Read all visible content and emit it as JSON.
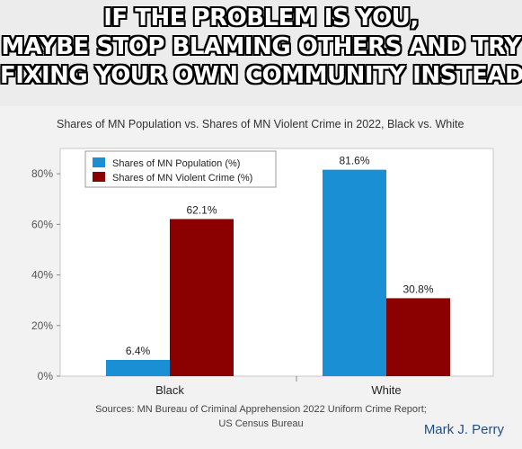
{
  "caption": {
    "lines": [
      "IF THE PROBLEM IS YOU,",
      "MAYBE STOP BLAMING OTHERS AND TRY",
      "FIXING YOUR OWN COMMUNITY INSTEAD"
    ]
  },
  "chart_data": {
    "type": "bar",
    "title": "Shares of MN Population vs. Shares of MN Violent Crime in 2022, Black vs. White",
    "categories": [
      "Black",
      "White"
    ],
    "series": [
      {
        "name": "Shares of MN Population (%)",
        "values": [
          6.4,
          81.6
        ],
        "labels": [
          "6.4%",
          "81.6%"
        ],
        "color": "#1a8fd3"
      },
      {
        "name": "Shares of MN Violent Crime (%)",
        "values": [
          62.1,
          30.8
        ],
        "labels": [
          "62.1%",
          "30.8%"
        ],
        "color": "#8b0000"
      }
    ],
    "ylim": [
      0,
      90
    ],
    "yticks": [
      0,
      20,
      40,
      60,
      80
    ],
    "ytick_labels": [
      "0%",
      "20%",
      "40%",
      "60%",
      "80%"
    ],
    "xlabel": "",
    "ylabel": "",
    "legend_position": "top-left",
    "grid": false
  },
  "source": {
    "line1": "Sources: MN Bureau of Criminal Apprehension 2022 Uniform Crime Report;",
    "line2": "US Census Bureau"
  },
  "author": "Mark J. Perry"
}
